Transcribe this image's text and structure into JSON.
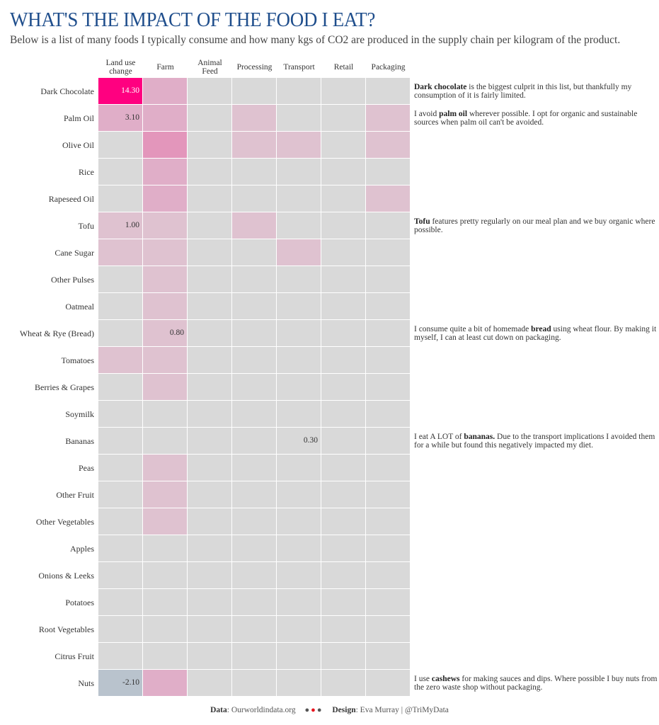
{
  "title": "WHAT'S THE IMPACT OF THE FOOD I EAT?",
  "subtitle": "Below is a list of many foods I typically consume and how many kgs of CO2 are produced in the supply chain per kilogram of the product.",
  "chart_data": {
    "type": "heatmap",
    "title": "WHAT'S THE IMPACT OF THE FOOD I EAT?",
    "columns": [
      "Land use change",
      "Farm",
      "Animal Feed",
      "Processing",
      "Transport",
      "Retail",
      "Packaging"
    ],
    "column_headers": [
      [
        "Land use",
        "change"
      ],
      [
        "Farm"
      ],
      [
        "Animal",
        "Feed"
      ],
      [
        "Processing"
      ],
      [
        "Transport"
      ],
      [
        "Retail"
      ],
      [
        "Packaging"
      ]
    ],
    "rows": [
      "Dark Chocolate",
      "Palm Oil",
      "Olive Oil",
      "Rice",
      "Rapeseed Oil",
      "Tofu",
      "Cane Sugar",
      "Other Pulses",
      "Oatmeal",
      "Wheat & Rye (Bread)",
      "Tomatoes",
      "Berries & Grapes",
      "Soymilk",
      "Bananas",
      "Peas",
      "Other Fruit",
      "Other Vegetables",
      "Apples",
      "Onions & Leeks",
      "Potatoes",
      "Root Vegetables",
      "Citrus Fruit",
      "Nuts"
    ],
    "values": [
      [
        14.3,
        3.4,
        0,
        0.2,
        0.1,
        0,
        0.2
      ],
      [
        3.1,
        2.1,
        0,
        1.3,
        0.2,
        0,
        0.9
      ],
      [
        0,
        3.7,
        0,
        0.7,
        0.5,
        0,
        0.9
      ],
      [
        0,
        3.6,
        0,
        0.1,
        0.1,
        0.1,
        0.1
      ],
      [
        0,
        3.4,
        0,
        0.2,
        0.1,
        0,
        1.1
      ],
      [
        1.0,
        0.5,
        0,
        0.8,
        0.2,
        0.3,
        0.1
      ],
      [
        1.2,
        0.5,
        0,
        0.1,
        0.8,
        0,
        0.1
      ],
      [
        0,
        1.1,
        0,
        0,
        0.1,
        0,
        0
      ],
      [
        0,
        1.4,
        0,
        0,
        0.1,
        0,
        0.1
      ],
      [
        0.1,
        0.8,
        0,
        0.2,
        0.1,
        0.1,
        0.1
      ],
      [
        0.4,
        0.7,
        0,
        0,
        0.2,
        0,
        0.1
      ],
      [
        0,
        0.7,
        0,
        0,
        0.2,
        0,
        0.2
      ],
      [
        0.2,
        0.1,
        0,
        0.2,
        0.1,
        0.3,
        0.1
      ],
      [
        0,
        0.3,
        0,
        0.1,
        0.3,
        0,
        0.1
      ],
      [
        0,
        0.7,
        0,
        0,
        0.1,
        0,
        0
      ],
      [
        0.1,
        0.4,
        0,
        0,
        0.2,
        0,
        0
      ],
      [
        0,
        0.4,
        0,
        0.1,
        0.2,
        0,
        0
      ],
      [
        0,
        0.2,
        0,
        0,
        0.1,
        0,
        0
      ],
      [
        0,
        0.2,
        0,
        0,
        0.1,
        0,
        0
      ],
      [
        0,
        0.2,
        0,
        0,
        0.1,
        0,
        0
      ],
      [
        0,
        0.2,
        0,
        0,
        0.1,
        0,
        0
      ],
      [
        -0.1,
        0.3,
        0,
        0,
        0.1,
        0,
        0
      ],
      [
        -2.1,
        2.1,
        0,
        0,
        0.1,
        0,
        0.1
      ]
    ],
    "labels": [
      {
        "row": "Dark Chocolate",
        "column": "Land use change",
        "text": "14.30"
      },
      {
        "row": "Palm Oil",
        "column": "Land use change",
        "text": "3.10"
      },
      {
        "row": "Tofu",
        "column": "Land use change",
        "text": "1.00"
      },
      {
        "row": "Wheat & Rye (Bread)",
        "column": "Farm",
        "text": "0.80"
      },
      {
        "row": "Bananas",
        "column": "Transport",
        "text": "0.30"
      },
      {
        "row": "Nuts",
        "column": "Land use change",
        "text": "-2.10"
      }
    ],
    "color_scale": {
      "negative": "#b9c3cd",
      "neutral": "#d9d9d9",
      "pale": "#dfc2d0",
      "medium": "#e0aec8",
      "strong": "#e396bb",
      "max": "#ff0080",
      "thresholds": [
        0.35,
        1.5,
        3.65,
        10
      ]
    },
    "xlabel": "",
    "ylabel": "",
    "units": "kg CO2 per kg of product"
  },
  "annotations": [
    {
      "row": "Dark Chocolate",
      "bold": "Dark chocolate",
      "text_before": "",
      "text_after": " is the biggest culprit in this list, but thankfully my consumption of it is fairly limited."
    },
    {
      "row": "Palm Oil",
      "bold": "palm oil",
      "text_before": "I avoid ",
      "text_after": " wherever possible. I opt for organic and sustainable sources when palm oil can't be avoided."
    },
    {
      "row": "Tofu",
      "bold": "Tofu",
      "text_before": "",
      "text_after": " features pretty regularly on our meal plan and we buy organic where possible."
    },
    {
      "row": "Wheat & Rye (Bread)",
      "bold": "bread",
      "text_before": "I consume quite a bit of homemade ",
      "text_after": " using wheat flour. By making it myself, I can at least cut down on packaging."
    },
    {
      "row": "Bananas",
      "bold": "bananas.",
      "text_before": "I eat A LOT of ",
      "text_after": " Due to the transport implications I avoided them for a while but found this negatively impacted my diet."
    },
    {
      "row": "Nuts",
      "bold": "cashews",
      "text_before": "I use ",
      "text_after": " for making sauces and dips. Where possible I buy nuts from the zero waste shop without packaging."
    }
  ],
  "footer": {
    "data_label": "Data",
    "data_value": ": Ourworldindata.org",
    "design_label": "Design",
    "design_value": ": Eva Murray | @TriMyData",
    "dot_colors": [
      "#555555",
      "#e8141e",
      "#555555"
    ]
  }
}
